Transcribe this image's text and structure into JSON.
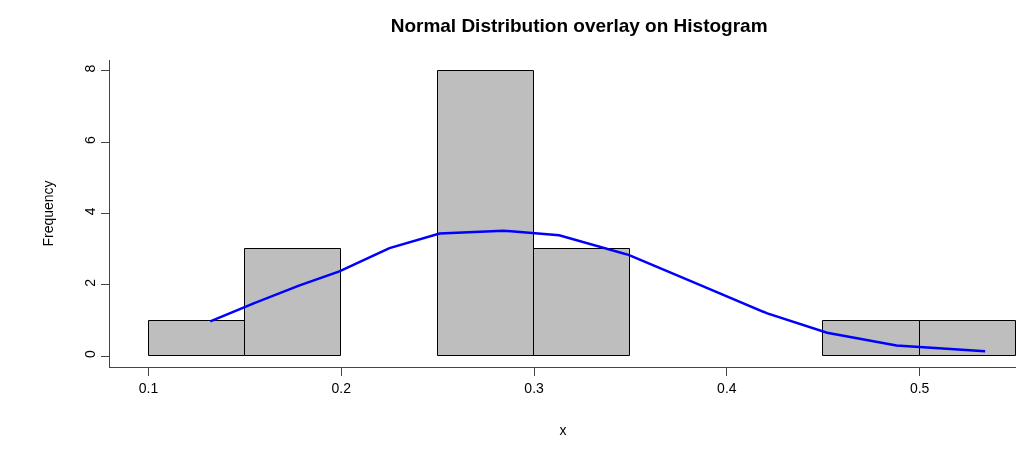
{
  "chart_data": {
    "type": "histogram",
    "title": "Normal Distribution overlay on Histogram",
    "xlabel": "x",
    "ylabel": "Frequency",
    "bins": [
      0.1,
      0.15,
      0.2,
      0.25,
      0.3,
      0.35,
      0.4,
      0.45,
      0.5,
      0.55
    ],
    "values": [
      1,
      3,
      0,
      8,
      3,
      0,
      0,
      1,
      1
    ],
    "color": "#bebebe",
    "series": [
      {
        "type": "line",
        "color": "#0000ff",
        "x": [
          0.132,
          0.153,
          0.178,
          0.199,
          0.225,
          0.251,
          0.284,
          0.313,
          0.349,
          0.385,
          0.421,
          0.452,
          0.488,
          0.534
        ],
        "values": [
          0.98,
          1.45,
          1.98,
          2.38,
          3.03,
          3.44,
          3.52,
          3.39,
          2.84,
          2.02,
          1.2,
          0.66,
          0.3,
          0.14
        ]
      }
    ],
    "xlim": [
      0.08,
      0.55
    ],
    "xticks": [
      0.1,
      0.2,
      0.3,
      0.4,
      0.5
    ],
    "ylim": [
      -0.3,
      8.3
    ],
    "yticks": [
      0,
      2,
      4,
      6,
      8
    ],
    "grid": false
  }
}
